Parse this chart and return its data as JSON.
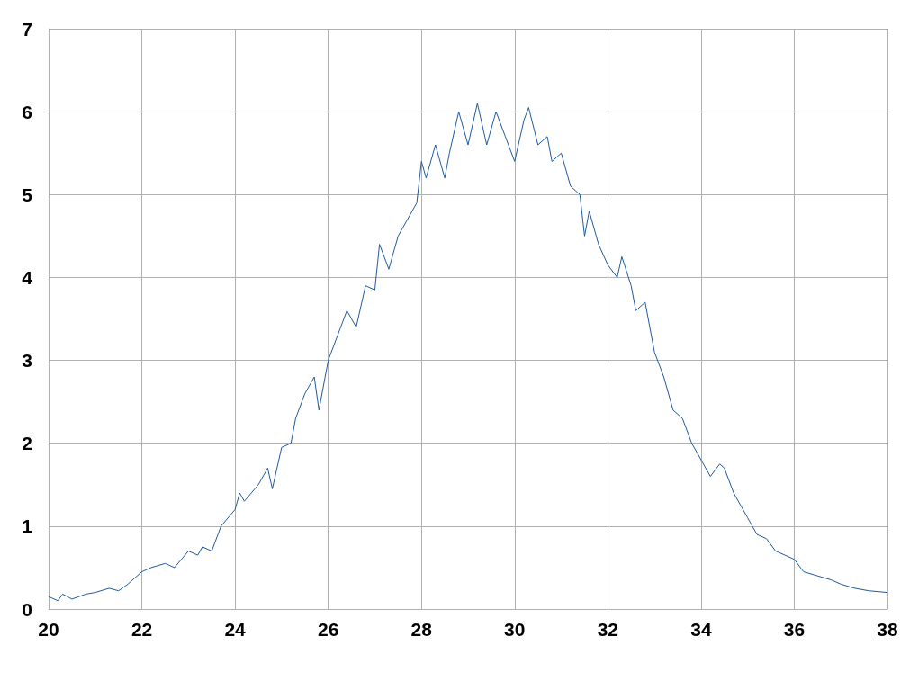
{
  "chart_data": {
    "type": "line",
    "xlim": [
      20,
      38
    ],
    "ylim": [
      0,
      7
    ],
    "xticks": [
      20,
      22,
      24,
      26,
      28,
      30,
      32,
      34,
      36,
      38
    ],
    "yticks": [
      0,
      1,
      2,
      3,
      4,
      5,
      6,
      7
    ],
    "grid": true,
    "marker": "none",
    "line_style": "solid",
    "series": [
      {
        "color": "#1f5a9e",
        "x": [
          20,
          20.2,
          20.3,
          20.5,
          20.8,
          21,
          21.3,
          21.5,
          21.7,
          22,
          22.2,
          22.5,
          22.7,
          23,
          23.2,
          23.3,
          23.5,
          23.7,
          24,
          24.1,
          24.2,
          24.5,
          24.7,
          24.8,
          25,
          25.2,
          25.3,
          25.5,
          25.7,
          25.8,
          26,
          26.2,
          26.4,
          26.6,
          26.8,
          27,
          27.1,
          27.3,
          27.5,
          27.7,
          27.9,
          28,
          28.1,
          28.3,
          28.5,
          28.6,
          28.8,
          29,
          29.2,
          29.4,
          29.6,
          29.8,
          30,
          30.2,
          30.3,
          30.5,
          30.7,
          30.8,
          31,
          31.2,
          31.4,
          31.5,
          31.6,
          31.8,
          32,
          32.2,
          32.3,
          32.5,
          32.6,
          32.8,
          33,
          33.2,
          33.4,
          33.6,
          33.8,
          34,
          34.2,
          34.4,
          34.5,
          34.7,
          35,
          35.2,
          35.4,
          35.6,
          35.8,
          36,
          36.2,
          36.5,
          36.8,
          37,
          37.3,
          37.6,
          38
        ],
        "values": [
          0.15,
          0.1,
          0.18,
          0.12,
          0.18,
          0.2,
          0.25,
          0.22,
          0.3,
          0.45,
          0.5,
          0.55,
          0.5,
          0.7,
          0.65,
          0.75,
          0.7,
          1.0,
          1.2,
          1.4,
          1.3,
          1.5,
          1.7,
          1.45,
          1.95,
          2.0,
          2.3,
          2.6,
          2.8,
          2.4,
          3.0,
          3.3,
          3.6,
          3.4,
          3.9,
          3.85,
          4.4,
          4.1,
          4.5,
          4.7,
          4.9,
          5.4,
          5.2,
          5.6,
          5.2,
          5.5,
          6.0,
          5.6,
          6.1,
          5.6,
          6.0,
          5.7,
          5.4,
          5.9,
          6.05,
          5.6,
          5.7,
          5.4,
          5.5,
          5.1,
          5.0,
          4.5,
          4.8,
          4.4,
          4.15,
          4.0,
          4.25,
          3.9,
          3.6,
          3.7,
          3.1,
          2.8,
          2.4,
          2.3,
          2.0,
          1.8,
          1.6,
          1.75,
          1.7,
          1.4,
          1.1,
          0.9,
          0.85,
          0.7,
          0.65,
          0.6,
          0.45,
          0.4,
          0.35,
          0.3,
          0.25,
          0.22,
          0.2
        ]
      }
    ]
  }
}
